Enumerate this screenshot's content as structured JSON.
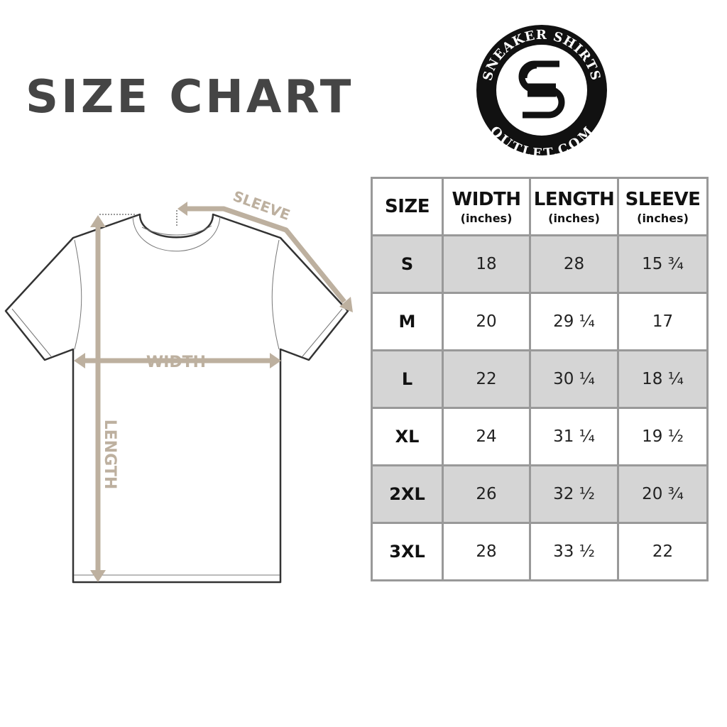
{
  "title": "SIZE CHART",
  "logo": {
    "top_text": "SNEAKER SHIRTS",
    "bottom_text": "OUTLET.COM",
    "monogram": "SS"
  },
  "diagram": {
    "width_label": "WIDTH",
    "length_label": "LENGTH",
    "sleeve_label": "SLEEVE",
    "arrow_color": "#bdb09f",
    "outline_color": "#333333"
  },
  "table": {
    "headers": [
      {
        "label": "SIZE",
        "unit": ""
      },
      {
        "label": "WIDTH",
        "unit": "(inches)"
      },
      {
        "label": "LENGTH",
        "unit": "(inches)"
      },
      {
        "label": "SLEEVE",
        "unit": "(inches)"
      }
    ],
    "rows": [
      [
        "S",
        "18",
        "28",
        "15 ¾"
      ],
      [
        "M",
        "20",
        "29 ¼",
        "17"
      ],
      [
        "L",
        "22",
        "30 ¼",
        "18 ¼"
      ],
      [
        "XL",
        "24",
        "31 ¼",
        "19 ½"
      ],
      [
        "2XL",
        "26",
        "32 ½",
        "20 ¾"
      ],
      [
        "3XL",
        "28",
        "33 ½",
        "22"
      ]
    ],
    "stripe_color": "#d5d5d5",
    "border_color": "#999999"
  }
}
